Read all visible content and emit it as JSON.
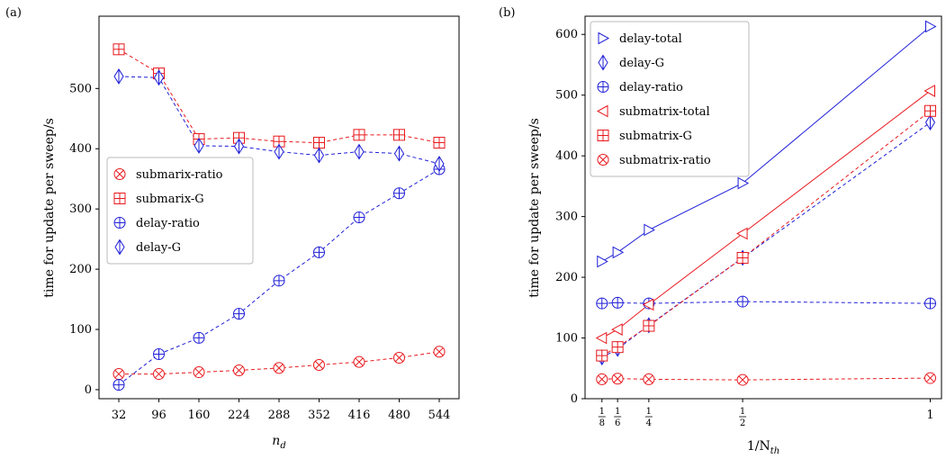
{
  "panels": [
    {
      "panel_label": "(a)",
      "xlabel_main": "n",
      "xlabel_sub": "d",
      "ylabel": "time for update per sweep/s"
    },
    {
      "panel_label": "(b)",
      "xlabel_main": "1/N",
      "xlabel_sub": "th",
      "ylabel": "time for update per sweep/s"
    }
  ],
  "chart_data": [
    {
      "type": "line",
      "title": "",
      "x_scale": "categorical",
      "categories": [
        "32",
        "96",
        "160",
        "224",
        "288",
        "352",
        "416",
        "480",
        "544"
      ],
      "yticks": [
        "0",
        "100",
        "200",
        "300",
        "400",
        "500"
      ],
      "ylim": [
        -15,
        620
      ],
      "grid": false,
      "legend_position": "center-left",
      "series": [
        {
          "name": "submarix-ratio",
          "color": "#e8191e",
          "marker": "otimes",
          "dash": true,
          "values": [
            26,
            26,
            29,
            32,
            36,
            41,
            46,
            53,
            63
          ]
        },
        {
          "name": "submarix-G",
          "color": "#e8191e",
          "marker": "boxplus",
          "dash": true,
          "values": [
            565,
            525,
            416,
            418,
            412,
            410,
            423,
            423,
            410
          ]
        },
        {
          "name": "delay-ratio",
          "color": "#1f1fd8",
          "marker": "oplus",
          "dash": true,
          "values": [
            8,
            59,
            86,
            126,
            181,
            228,
            286,
            326,
            366
          ]
        },
        {
          "name": "delay-G",
          "color": "#1f1fd8",
          "marker": "diamondbar",
          "dash": true,
          "values": [
            520,
            518,
            405,
            404,
            395,
            389,
            395,
            392,
            375
          ]
        }
      ]
    },
    {
      "type": "line",
      "title": "",
      "x_scale": "reciprocal",
      "xticks": [
        {
          "value": 0.125,
          "num": "1",
          "den": "8"
        },
        {
          "value": 0.1667,
          "num": "1",
          "den": "6"
        },
        {
          "value": 0.25,
          "num": "1",
          "den": "4"
        },
        {
          "value": 0.5,
          "num": "1",
          "den": "2"
        },
        {
          "value": 1,
          "label": "1"
        }
      ],
      "x": [
        0.125,
        0.1667,
        0.25,
        0.5,
        1
      ],
      "xlim": [
        0.08,
        1.03
      ],
      "yticks": [
        "0",
        "100",
        "200",
        "300",
        "400",
        "500",
        "600"
      ],
      "ylim": [
        0,
        630
      ],
      "grid": false,
      "legend_position": "top-left",
      "series": [
        {
          "name": "delay-total",
          "color": "#1f1fd8",
          "marker": "triright",
          "dash": false,
          "values": [
            226,
            241,
            278,
            355,
            613
          ]
        },
        {
          "name": "delay-G",
          "color": "#1f1fd8",
          "marker": "diamondbar",
          "dash": true,
          "values": [
            68,
            82,
            121,
            232,
            455
          ]
        },
        {
          "name": "delay-ratio",
          "color": "#1f1fd8",
          "marker": "oplus",
          "dash": true,
          "values": [
            157,
            158,
            157,
            160,
            157
          ]
        },
        {
          "name": "submatrix-total",
          "color": "#e8191e",
          "marker": "trileft",
          "dash": false,
          "values": [
            100,
            114,
            155,
            272,
            507
          ]
        },
        {
          "name": "submatrix-G",
          "color": "#e8191e",
          "marker": "boxplus",
          "dash": true,
          "values": [
            71,
            85,
            120,
            232,
            474
          ]
        },
        {
          "name": "submatrix-ratio",
          "color": "#e8191e",
          "marker": "otimes",
          "dash": true,
          "values": [
            32,
            33,
            32,
            31,
            34
          ]
        }
      ]
    }
  ]
}
